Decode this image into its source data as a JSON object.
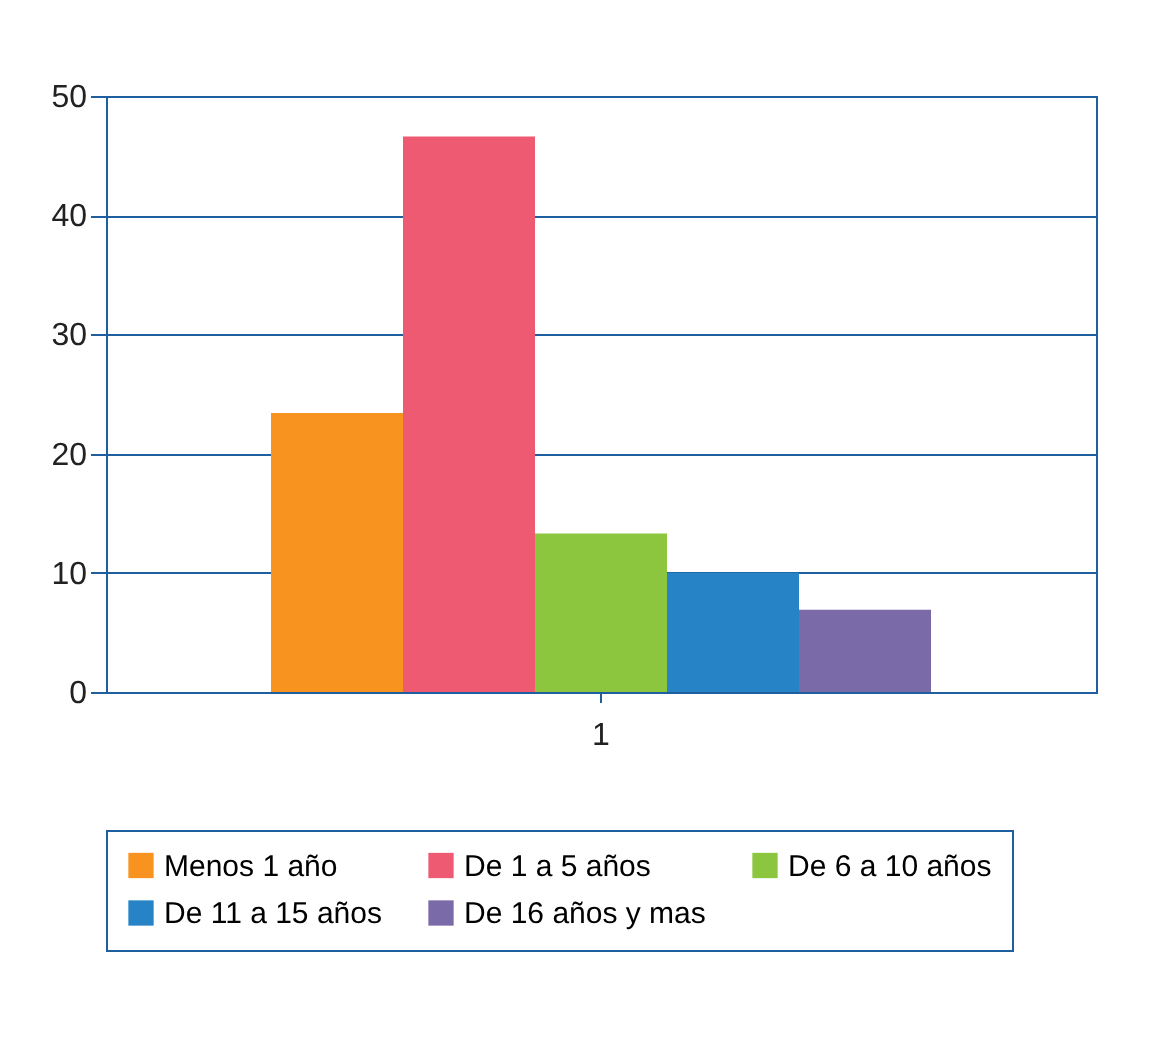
{
  "chart_data": {
    "type": "bar",
    "categories": [
      "1"
    ],
    "series": [
      {
        "name": "Menos 1 año",
        "color": "#f7931e",
        "values": [
          23.4
        ]
      },
      {
        "name": "De 1 a 5 años",
        "color": "#ef5a73",
        "values": [
          46.6
        ]
      },
      {
        "name": "De 6 a 10 años",
        "color": "#8cc63f",
        "values": [
          13.3
        ]
      },
      {
        "name": "De 11 a 15 años",
        "color": "#2683c6",
        "values": [
          10.0
        ]
      },
      {
        "name": "De 16 años y mas",
        "color": "#7a6aa8",
        "values": [
          6.9
        ]
      }
    ],
    "ylim": [
      0,
      50
    ],
    "yticks": [
      0,
      10,
      20,
      30,
      40,
      50
    ],
    "grid": "y",
    "legend": "bottom"
  }
}
